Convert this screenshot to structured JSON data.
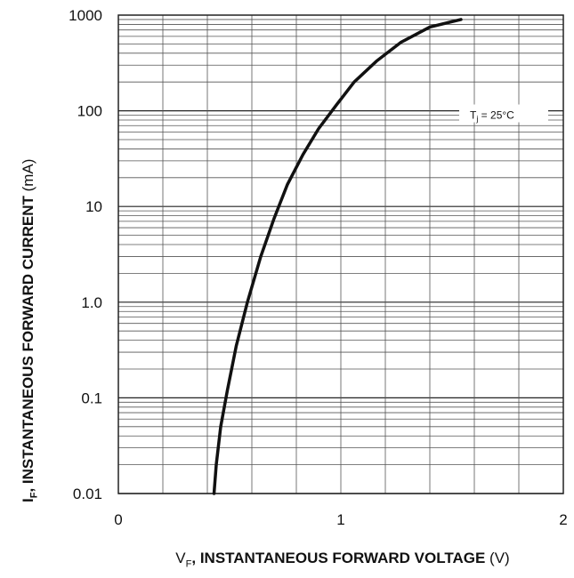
{
  "chart_data": {
    "type": "line",
    "title": "",
    "x_scale": "linear",
    "y_scale": "log",
    "xlim": [
      0,
      2
    ],
    "ylim": [
      0.01,
      1000
    ],
    "x_ticks": [
      {
        "value": 0,
        "label": "0"
      },
      {
        "value": 1,
        "label": "1"
      },
      {
        "value": 2,
        "label": "2"
      }
    ],
    "y_ticks": [
      {
        "value": 1000,
        "label": "1000"
      },
      {
        "value": 100,
        "label": "100"
      },
      {
        "value": 10,
        "label": "10"
      },
      {
        "value": 1,
        "label": "1.0"
      },
      {
        "value": 0.1,
        "label": "0.1"
      },
      {
        "value": 0.01,
        "label": "0.01"
      }
    ],
    "xlabel_main": "V",
    "xlabel_sub": "F",
    "xlabel_rest": ", INSTANTANEOUS FORWARD VOLTAGE",
    "xlabel_unit": " (V)",
    "ylabel_main": "I",
    "ylabel_sub": "F",
    "ylabel_rest": ", INSTANTANEOUS FORWARD CURRENT",
    "ylabel_unit": " (mA)",
    "annotation": {
      "main": "T",
      "sub": "j",
      "rest": " = 25°C"
    },
    "grid": true,
    "series": [
      {
        "x": [
          0.43,
          0.44,
          0.46,
          0.49,
          0.53,
          0.58,
          0.64,
          0.7,
          0.76,
          0.83,
          0.9,
          0.98,
          1.06,
          1.16,
          1.27,
          1.4,
          1.54
        ],
        "y": [
          0.01,
          0.02,
          0.05,
          0.12,
          0.35,
          1.0,
          3.0,
          7.5,
          17,
          35,
          65,
          115,
          200,
          330,
          520,
          750,
          900
        ]
      }
    ],
    "line_color": "#111111"
  }
}
